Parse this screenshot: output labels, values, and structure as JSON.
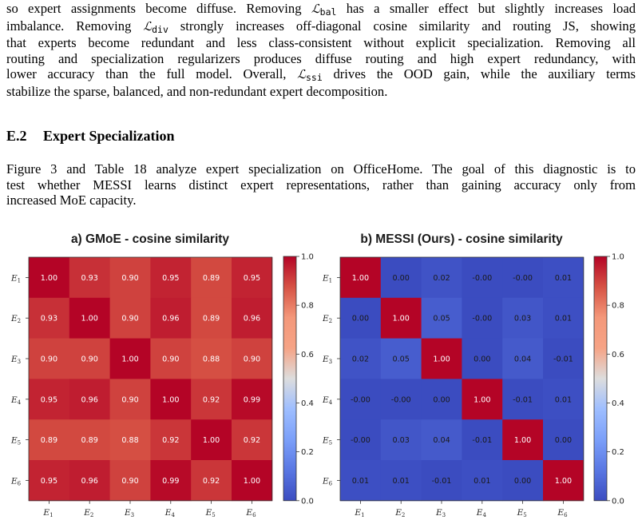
{
  "paragraph1": {
    "l1a": "so expert assignments become diffuse. Removing ",
    "l1sym": "ℒ",
    "l1sub": "bal",
    "l1b": " has a smaller effect but slightly increases load",
    "l2a": "imbalance. Removing ",
    "l2sym": "ℒ",
    "l2sub": "div",
    "l2b": " strongly increases off-diagonal cosine similarity and routing JS, showing",
    "l3": "that experts become redundant and less class-consistent without explicit specialization. Removing all",
    "l4": "routing and specialization regularizers produces diffuse routing and high expert redundancy, with",
    "l5a": "lower accuracy than the full model. Overall, ",
    "l5sym": "ℒ",
    "l5sub": "ssi",
    "l5b": " drives the OOD gain, while the auxiliary terms",
    "l6": "stabilize the sparse, balanced, and non-redundant expert decomposition."
  },
  "section": {
    "number": "E.2",
    "title": "Expert Specialization"
  },
  "paragraph2": {
    "l1": "Figure 3 and Table 18 analyze expert specialization on OfficeHome. The goal of this diagnostic is to",
    "l2": "test whether MESSI learns distinct expert representations, rather than gaining accuracy only from",
    "l3": "increased MoE capacity."
  },
  "chart_data": [
    {
      "type": "heatmap",
      "title": "a) GMoE - cosine similarity",
      "x_categories": [
        "E1",
        "E2",
        "E3",
        "E4",
        "E5",
        "E6"
      ],
      "y_categories": [
        "E1",
        "E2",
        "E3",
        "E4",
        "E5",
        "E6"
      ],
      "values": [
        [
          "1.00",
          "0.93",
          "0.90",
          "0.95",
          "0.89",
          "0.95"
        ],
        [
          "0.93",
          "1.00",
          "0.90",
          "0.96",
          "0.89",
          "0.96"
        ],
        [
          "0.90",
          "0.90",
          "1.00",
          "0.90",
          "0.88",
          "0.90"
        ],
        [
          "0.95",
          "0.96",
          "0.90",
          "1.00",
          "0.92",
          "0.99"
        ],
        [
          "0.89",
          "0.89",
          "0.88",
          "0.92",
          "1.00",
          "0.92"
        ],
        [
          "0.95",
          "0.96",
          "0.90",
          "0.99",
          "0.92",
          "1.00"
        ]
      ],
      "colorbar": {
        "range": [
          0,
          1
        ],
        "ticks": [
          "0.0",
          "0.2",
          "0.4",
          "0.6",
          "0.8",
          "1.0"
        ],
        "colormap": "coolwarm"
      }
    },
    {
      "type": "heatmap",
      "title": "b) MESSI (Ours) - cosine similarity",
      "x_categories": [
        "E1",
        "E2",
        "E3",
        "E4",
        "E5",
        "E6"
      ],
      "y_categories": [
        "E1",
        "E2",
        "E3",
        "E4",
        "E5",
        "E6"
      ],
      "values": [
        [
          "1.00",
          "0.00",
          "0.02",
          "-0.00",
          "-0.00",
          "0.01"
        ],
        [
          "0.00",
          "1.00",
          "0.05",
          "-0.00",
          "0.03",
          "0.01"
        ],
        [
          "0.02",
          "0.05",
          "1.00",
          "0.00",
          "0.04",
          "-0.01"
        ],
        [
          "-0.00",
          "-0.00",
          "0.00",
          "1.00",
          "-0.01",
          "0.01"
        ],
        [
          "-0.00",
          "0.03",
          "0.04",
          "-0.01",
          "1.00",
          "0.00"
        ],
        [
          "0.01",
          "0.01",
          "-0.01",
          "0.01",
          "0.00",
          "1.00"
        ]
      ],
      "colorbar": {
        "range": [
          0,
          1
        ],
        "ticks": [
          "0.0",
          "0.2",
          "0.4",
          "0.6",
          "0.8",
          "1.0"
        ],
        "colormap": "coolwarm"
      }
    }
  ]
}
